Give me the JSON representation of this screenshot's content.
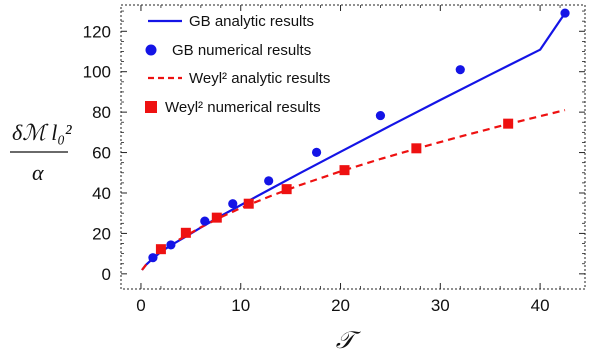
{
  "chart_data": {
    "type": "line",
    "title": "",
    "xlabel": "𝒯",
    "ylabel_top": "δℳ l₀²",
    "ylabel_bottom": "α",
    "xlim": [
      -2.0,
      44.5
    ],
    "ylim": [
      -7.5,
      133.0
    ],
    "x_ticks": [
      0,
      10,
      20,
      30,
      40
    ],
    "y_ticks": [
      0,
      20,
      40,
      60,
      80,
      100,
      120
    ],
    "grid": false,
    "frame": "dashed",
    "legend_position": "top-left",
    "series": [
      {
        "name": "GB analytic results",
        "kind": "line",
        "style": "solid",
        "color": "#1414e6",
        "x": [
          0.1,
          0.5,
          1,
          2,
          3,
          4.5,
          6,
          8,
          10,
          13,
          16,
          20,
          25,
          30,
          35,
          40,
          42.5
        ],
        "y": [
          1.9,
          4.4,
          6.7,
          10.9,
          14.1,
          18.4,
          22.9,
          28.6,
          34.0,
          42.0,
          50.0,
          60.4,
          73.3,
          86.0,
          98.5,
          110.9,
          129.0
        ]
      },
      {
        "name": "GB numerical results",
        "kind": "markers",
        "marker": "circle",
        "color": "#1414e6",
        "x": [
          1.2,
          3.0,
          6.4,
          9.2,
          12.8,
          17.6,
          24.0,
          32.0,
          42.5
        ],
        "y": [
          8.0,
          14.3,
          26.1,
          34.7,
          46.0,
          60.1,
          78.3,
          101.0,
          129.0
        ]
      },
      {
        "name": "Weyl² analytic results",
        "kind": "line",
        "style": "dashed",
        "color": "#ee1111",
        "x": [
          0.1,
          0.5,
          1,
          2,
          3,
          4.5,
          6,
          8,
          10,
          13,
          16,
          20,
          24,
          28,
          32,
          36,
          40,
          42.5
        ],
        "y": [
          1.9,
          4.4,
          6.8,
          11.2,
          14.6,
          18.8,
          23.0,
          28.0,
          32.5,
          38.5,
          44.0,
          50.7,
          56.8,
          62.5,
          67.9,
          73.1,
          78.0,
          81.0
        ]
      },
      {
        "name": "Weyl² numerical results",
        "kind": "markers",
        "marker": "square",
        "color": "#ee1111",
        "x": [
          2.0,
          4.5,
          7.6,
          10.8,
          14.6,
          20.4,
          27.6,
          36.8
        ],
        "y": [
          12.2,
          20.3,
          27.8,
          34.7,
          41.9,
          51.3,
          62.1,
          74.3
        ]
      }
    ]
  }
}
